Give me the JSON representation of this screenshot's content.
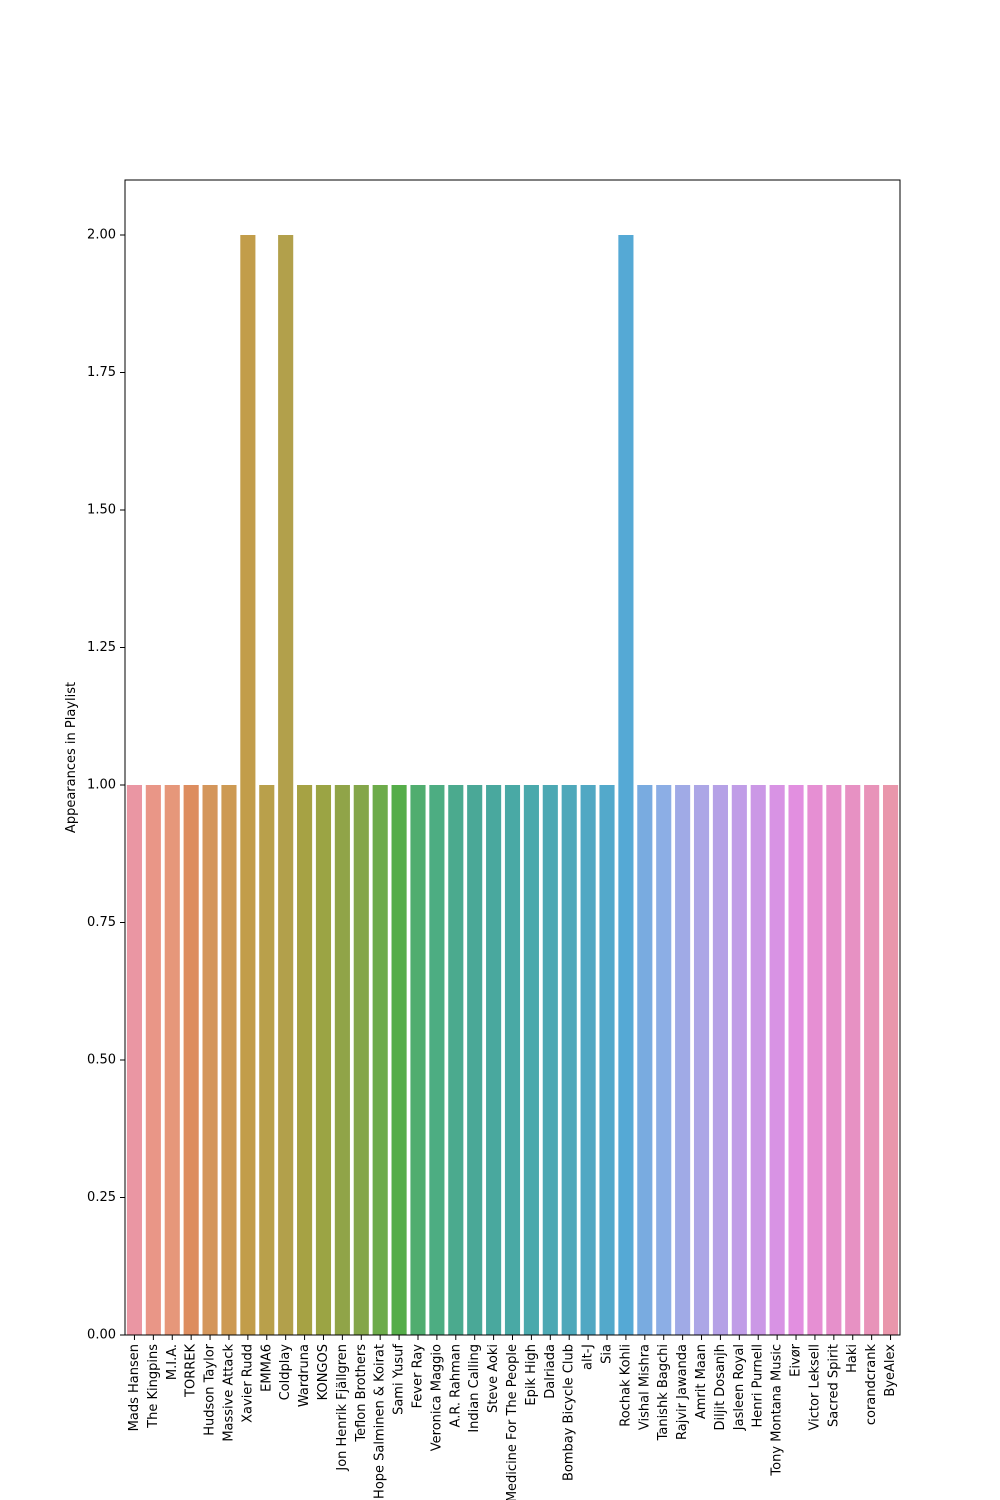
{
  "chart_data": {
    "type": "bar",
    "title": "",
    "xlabel": "",
    "ylabel": "Appearances in Playlist",
    "ylim": [
      0,
      2.1
    ],
    "yticks": [
      0.0,
      0.25,
      0.5,
      0.75,
      1.0,
      1.25,
      1.5,
      1.75,
      2.0
    ],
    "ytick_labels": [
      "0.00",
      "0.25",
      "0.50",
      "0.75",
      "1.00",
      "1.25",
      "1.50",
      "1.75",
      "2.00"
    ],
    "grid": false,
    "categories": [
      "Mads Hansen",
      "The Kingpins",
      "M.I.A.",
      "TORREK",
      "Hudson Taylor",
      "Massive Attack",
      "Xavier Rudd",
      "EMMA6",
      "Coldplay",
      "Wardruna",
      "KONGOS",
      "Jon Henrik Fjällgren",
      "Teflon Brothers",
      "Hope Salminen & Koirat",
      "Sami Yusuf",
      "Fever Ray",
      "Veronica Maggio",
      "A.R. Rahman",
      "Indian Calling",
      "Steve Aoki",
      "Medicine For The People",
      "Epik High",
      "Dalriada",
      "Bombay Bicycle Club",
      "alt-J",
      "Sia",
      "Rochak Kohli",
      "Vishal Mishra",
      "Tanishk Bagchi",
      "Rajvir Jawanda",
      "Amrit Maan",
      "Diljit Dosanjh",
      "Jasleen Royal",
      "Henri Purnell",
      "Tony Montana Music",
      "Eivør",
      "Victor Leksell",
      "Sacred Spirit",
      "Haki",
      "corandcrank",
      "ByeAlex"
    ],
    "values": [
      1,
      1,
      1,
      1,
      1,
      1,
      2,
      1,
      2,
      1,
      1,
      1,
      1,
      1,
      1,
      1,
      1,
      1,
      1,
      1,
      1,
      1,
      1,
      1,
      1,
      1,
      2,
      1,
      1,
      1,
      1,
      1,
      1,
      1,
      1,
      1,
      1,
      1,
      1,
      1,
      1
    ],
    "colors": [
      "#ea96a3",
      "#e99687",
      "#e6977a",
      "#dd8d5f",
      "#d4965b",
      "#cd9a53",
      "#c29d4a",
      "#b9a04b",
      "#b2a04b",
      "#a6a244",
      "#9ba444",
      "#90a448",
      "#84a64a",
      "#6dab4a",
      "#55ad49",
      "#50ad6f",
      "#4dad82",
      "#4baa8e",
      "#4aa897",
      "#49a89e",
      "#49a9a5",
      "#4aa9ac",
      "#4ca8b3",
      "#4ea8ba",
      "#51a8c3",
      "#53a9cb",
      "#55a9d5",
      "#79abe0",
      "#8caee5",
      "#a0aae6",
      "#aca6e6",
      "#b5a1e6",
      "#c09de7",
      "#cb98e6",
      "#d893e4",
      "#e28fe0",
      "#e68fd3",
      "#e690cb",
      "#e791c3",
      "#e893b9",
      "#e996ab"
    ]
  }
}
